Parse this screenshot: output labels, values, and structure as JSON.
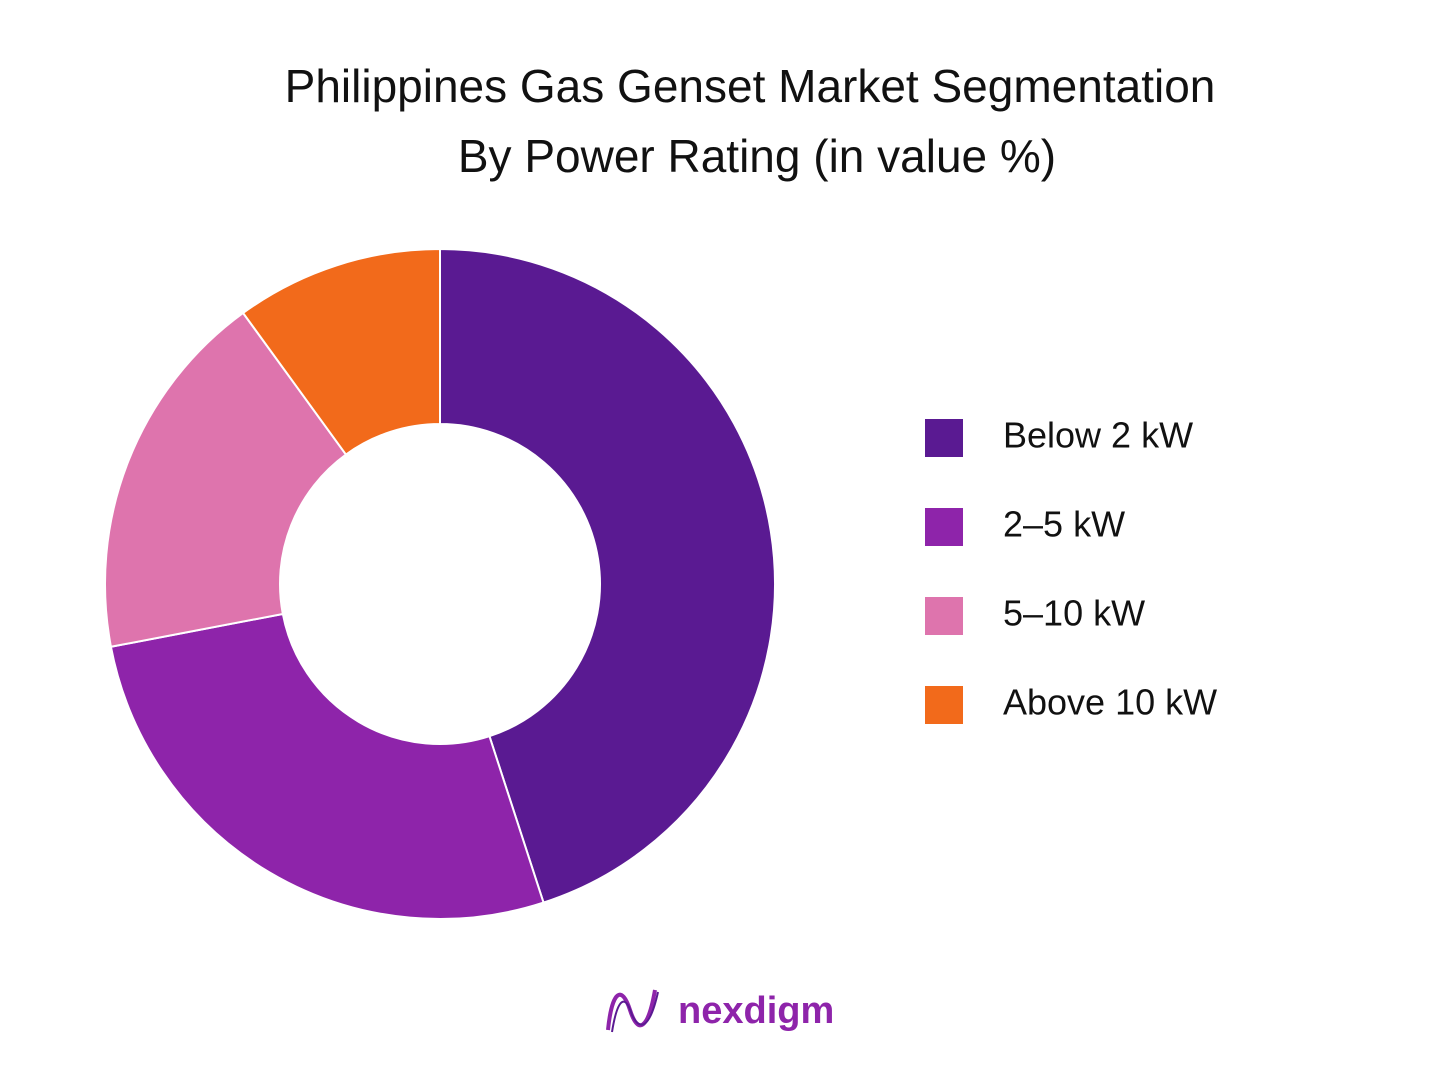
{
  "chart_data": {
    "type": "donut",
    "title": "Philippines Gas Genset Market Segmentation",
    "subtitle": "By Power Rating (in value %)",
    "categories": [
      "Below 2 kW",
      "2–5 kW",
      "5–10 kW",
      "Above 10 kW"
    ],
    "values": [
      45,
      27,
      18,
      10
    ],
    "colors": [
      "#5a1a92",
      "#8e24aa",
      "#de74ad",
      "#f26a1b"
    ],
    "legend": "right"
  },
  "brand": "nexdigm"
}
